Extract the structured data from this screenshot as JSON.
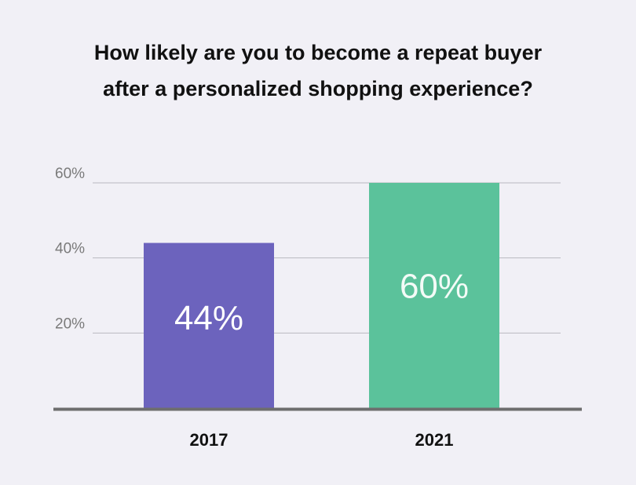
{
  "chart_data": {
    "type": "bar",
    "title_lines": [
      "How likely are you to become a repeat buyer",
      "after a personalized shopping experience?"
    ],
    "categories": [
      "2017",
      "2021"
    ],
    "values": [
      44,
      60
    ],
    "data_labels": [
      "44%",
      "60%"
    ],
    "colors": [
      "#6c63bd",
      "#5bc29b"
    ],
    "ylim": [
      0,
      60
    ],
    "yticks": [
      20,
      40,
      60
    ],
    "ytick_labels": [
      "20%",
      "40%",
      "60%"
    ],
    "grid": true,
    "axis_color": "#6e6e6e",
    "grid_color": "#b9b9c0"
  }
}
